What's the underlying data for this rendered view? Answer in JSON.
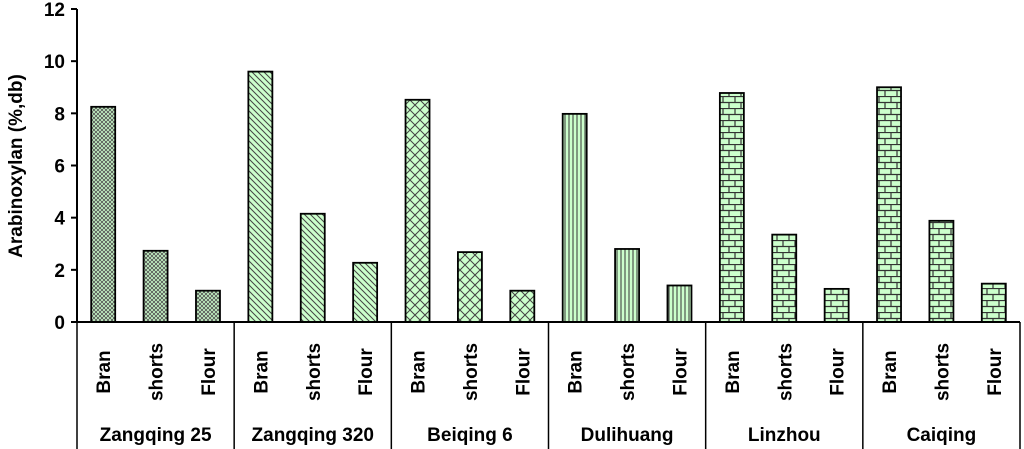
{
  "chart_data": {
    "type": "bar",
    "title": "",
    "ylabel": "Arabinoxylan (%,db)",
    "xlabel": "",
    "ylim": [
      0,
      12
    ],
    "yticks": [
      0,
      2,
      4,
      6,
      8,
      10,
      12
    ],
    "grid": false,
    "legend": "none",
    "bar_fill": "#ccffcc",
    "groups": [
      {
        "name": "Zangqing 25",
        "pattern": "cross",
        "bars": [
          {
            "label": "Bran",
            "value": 8.25
          },
          {
            "label": "shorts",
            "value": 2.73
          },
          {
            "label": "Flour",
            "value": 1.2
          }
        ]
      },
      {
        "name": "Zangqing 320",
        "pattern": "diagonal",
        "bars": [
          {
            "label": "Bran",
            "value": 9.6
          },
          {
            "label": "shorts",
            "value": 4.15
          },
          {
            "label": "Flour",
            "value": 2.27
          }
        ]
      },
      {
        "name": "Beiqing 6",
        "pattern": "zigzag",
        "bars": [
          {
            "label": "Bran",
            "value": 8.52
          },
          {
            "label": "shorts",
            "value": 2.68
          },
          {
            "label": "Flour",
            "value": 1.2
          }
        ]
      },
      {
        "name": "Dulihuang",
        "pattern": "vertical",
        "bars": [
          {
            "label": "Bran",
            "value": 7.98
          },
          {
            "label": "shorts",
            "value": 2.8
          },
          {
            "label": "Flour",
            "value": 1.4
          }
        ]
      },
      {
        "name": "Linzhou",
        "pattern": "brick",
        "bars": [
          {
            "label": "Bran",
            "value": 8.78
          },
          {
            "label": "shorts",
            "value": 3.35
          },
          {
            "label": "Flour",
            "value": 1.27
          }
        ]
      },
      {
        "name": "Caiqing",
        "pattern": "brick",
        "bars": [
          {
            "label": "Bran",
            "value": 9.0
          },
          {
            "label": "shorts",
            "value": 3.88
          },
          {
            "label": "Flour",
            "value": 1.47
          }
        ]
      }
    ]
  }
}
